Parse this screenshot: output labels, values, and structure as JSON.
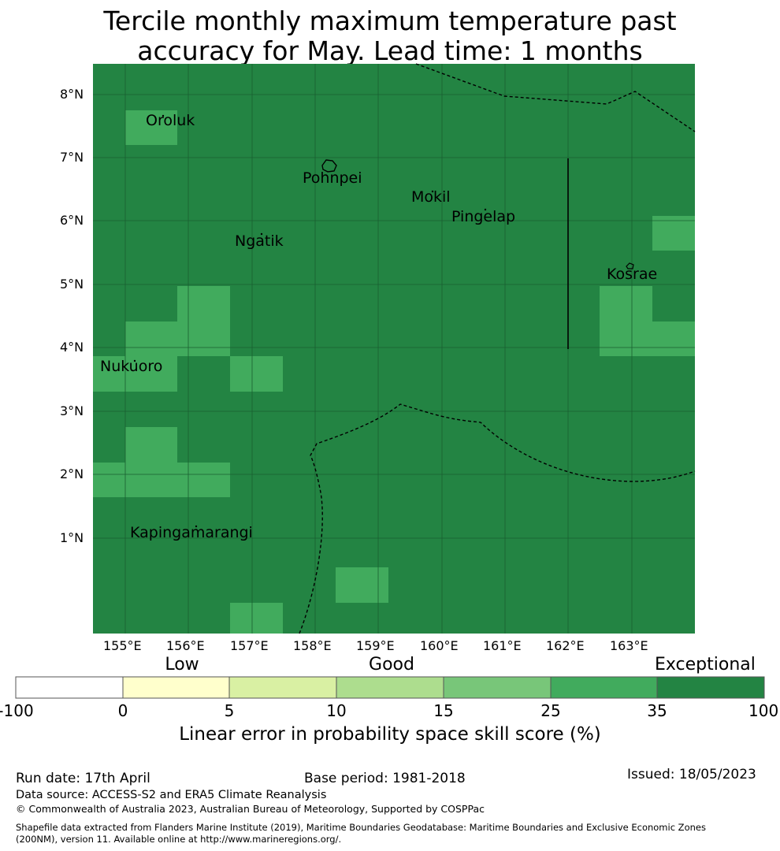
{
  "title": {
    "line1": "Tercile monthly maximum temperature past",
    "line2": "accuracy for May. Lead time: 1 months"
  },
  "map": {
    "lat_labels": [
      "8°N",
      "7°N",
      "6°N",
      "5°N",
      "4°N",
      "3°N",
      "2°N",
      "1°N"
    ],
    "lon_labels": [
      "155°E",
      "156°E",
      "157°E",
      "158°E",
      "159°E",
      "160°E",
      "161°E",
      "162°E",
      "163°E"
    ],
    "islands": [
      "Oroluk",
      "Pohnpei",
      "Mokil",
      "Pingelap",
      "Ngatik",
      "Kosrae",
      "Nukuoro",
      "Kapingamarangi"
    ],
    "colors": {
      "exceptional": "#238443",
      "band_25_35": "#41ab5d",
      "ocean_grid": "#1a5f30"
    }
  },
  "legend": {
    "categories": [
      "Low",
      "Good",
      "Exceptional"
    ],
    "ticks": [
      "-100",
      "0",
      "5",
      "10",
      "15",
      "25",
      "35",
      "100"
    ],
    "colors": [
      "#ffffff",
      "#ffffcc",
      "#d9f0a3",
      "#addd8e",
      "#78c679",
      "#41ab5d",
      "#238443"
    ],
    "label": "Linear error in probability space skill score (%)"
  },
  "footer": {
    "run_date": "Run date: 17th April",
    "base_period": "Base period: 1981-2018",
    "issued": "Issued: 18/05/2023",
    "data_source": "Data source: ACCESS-S2 and ERA5 Climate Reanalysis",
    "copyright": "© Commonwealth of Australia 2023, Australian Bureau of Meteorology, Supported by COSPPac",
    "shapefile_line1": "Shapefile data extracted from Flanders Marine Institute (2019), Maritime Boundaries Geodatabase: Maritime Boundaries and Exclusive Economic Zones",
    "shapefile_line2": "(200NM), version 11. Available online at http://www.marineregions.org/."
  }
}
